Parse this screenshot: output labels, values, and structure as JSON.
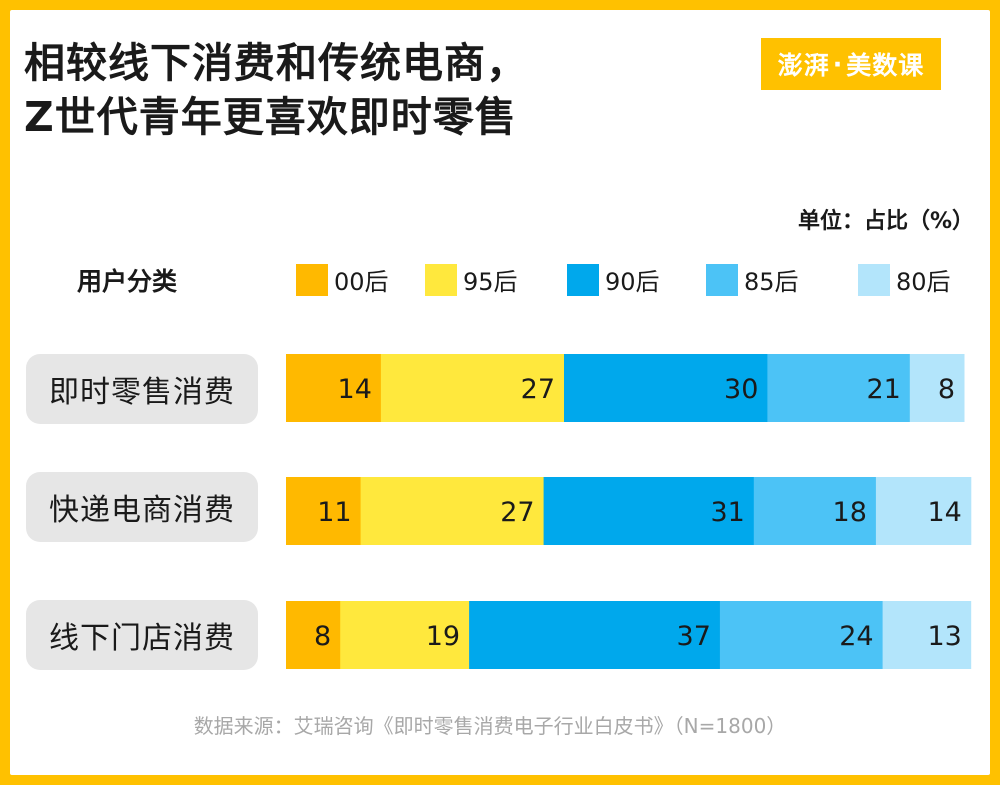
{
  "title": {
    "line1": "相较线下消费和传统电商，",
    "line2": "Z世代青年更喜欢即时零售"
  },
  "logo": {
    "part1": "澎湃",
    "dot": "·",
    "part2": "美数课"
  },
  "unit": "单位：占比（%）",
  "legend_title": "用户分类",
  "source": "数据来源：艾瑞咨询《即时零售消费电子行业白皮书》（N=1800）",
  "colors": {
    "00后": "#FFB900",
    "95后": "#FFE83D",
    "90后": "#00A8EC",
    "85后": "#4CC3F6",
    "80后": "#B3E5FB",
    "background": "#FFC100",
    "label_bg": "#E6E6E6"
  },
  "chart_data": {
    "type": "bar",
    "orientation": "horizontal",
    "stacked": true,
    "categories": [
      "即时零售消费",
      "快递电商消费",
      "线下门店消费"
    ],
    "series": [
      {
        "name": "00后",
        "values": [
          14,
          11,
          8
        ]
      },
      {
        "name": "95后",
        "values": [
          27,
          27,
          19
        ]
      },
      {
        "name": "90后",
        "values": [
          30,
          31,
          37
        ]
      },
      {
        "name": "85后",
        "values": [
          21,
          18,
          24
        ]
      },
      {
        "name": "80后",
        "values": [
          8,
          14,
          13
        ]
      }
    ],
    "xlim": [
      0,
      100
    ],
    "grid": false,
    "legend": "top"
  }
}
